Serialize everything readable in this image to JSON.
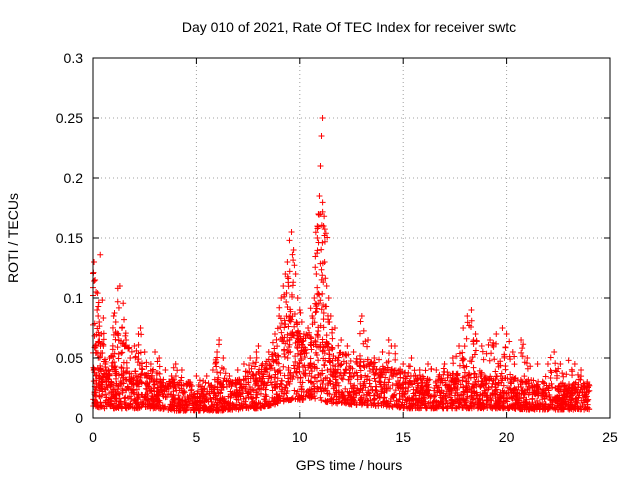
{
  "chart_data": {
    "type": "scatter",
    "title": "Day 010 of 2021, Rate Of TEC Index for receiver swtc",
    "xlabel": "GPS time / hours",
    "ylabel": "ROTI / TECUs",
    "xlim": [
      0,
      25
    ],
    "ylim": [
      0,
      0.3
    ],
    "xticks": [
      0,
      5,
      10,
      15,
      20,
      25
    ],
    "xtick_labels": [
      "0",
      "5",
      "10",
      "15",
      "20",
      "25"
    ],
    "yticks": [
      0,
      0.05,
      0.1,
      0.15,
      0.2,
      0.25,
      0.3
    ],
    "ytick_labels": [
      "0",
      "0.05",
      "0.1",
      "0.15",
      "0.2",
      "0.25",
      "0.3"
    ],
    "grid": true,
    "marker": "+",
    "color": "#ff0000",
    "series": [
      {
        "name": "ROTI",
        "points": [
          [
            0.05,
            0.13
          ],
          [
            0.1,
            0.115
          ],
          [
            0.15,
            0.105
          ],
          [
            0.2,
            0.09
          ],
          [
            0.25,
            0.085
          ],
          [
            0.3,
            0.08
          ],
          [
            0.35,
            0.136
          ],
          [
            0.4,
            0.07
          ],
          [
            0.5,
            0.06
          ],
          [
            0.6,
            0.045
          ],
          [
            0.7,
            0.035
          ],
          [
            0.8,
            0.05
          ],
          [
            1.0,
            0.085
          ],
          [
            1.1,
            0.08
          ],
          [
            1.2,
            0.108
          ],
          [
            1.3,
            0.11
          ],
          [
            1.4,
            0.075
          ],
          [
            1.5,
            0.082
          ],
          [
            1.6,
            0.065
          ],
          [
            1.8,
            0.05
          ],
          [
            2.0,
            0.06
          ],
          [
            2.2,
            0.07
          ],
          [
            2.3,
            0.075
          ],
          [
            2.5,
            0.055
          ],
          [
            2.8,
            0.045
          ],
          [
            3.0,
            0.055
          ],
          [
            3.2,
            0.05
          ],
          [
            3.5,
            0.04
          ],
          [
            3.8,
            0.035
          ],
          [
            4.0,
            0.045
          ],
          [
            4.3,
            0.04
          ],
          [
            4.6,
            0.03
          ],
          [
            5.0,
            0.035
          ],
          [
            5.5,
            0.035
          ],
          [
            5.8,
            0.04
          ],
          [
            6.0,
            0.055
          ],
          [
            6.1,
            0.065
          ],
          [
            6.3,
            0.05
          ],
          [
            6.6,
            0.035
          ],
          [
            7.0,
            0.04
          ],
          [
            7.3,
            0.045
          ],
          [
            7.6,
            0.05
          ],
          [
            7.9,
            0.055
          ],
          [
            8.0,
            0.06
          ],
          [
            8.2,
            0.045
          ],
          [
            8.5,
            0.055
          ],
          [
            8.8,
            0.07
          ],
          [
            9.0,
            0.085
          ],
          [
            9.1,
            0.1
          ],
          [
            9.2,
            0.11
          ],
          [
            9.3,
            0.12
          ],
          [
            9.4,
            0.13
          ],
          [
            9.5,
            0.148
          ],
          [
            9.6,
            0.155
          ],
          [
            9.7,
            0.14
          ],
          [
            9.8,
            0.12
          ],
          [
            9.9,
            0.1
          ],
          [
            10.0,
            0.09
          ],
          [
            10.1,
            0.08
          ],
          [
            10.2,
            0.07
          ],
          [
            10.4,
            0.075
          ],
          [
            10.6,
            0.085
          ],
          [
            10.7,
            0.1
          ],
          [
            10.8,
            0.12
          ],
          [
            10.85,
            0.15
          ],
          [
            10.9,
            0.17
          ],
          [
            10.95,
            0.185
          ],
          [
            11.0,
            0.21
          ],
          [
            11.05,
            0.235
          ],
          [
            11.1,
            0.25
          ],
          [
            11.15,
            0.16
          ],
          [
            11.2,
            0.13
          ],
          [
            11.3,
            0.11
          ],
          [
            11.4,
            0.1
          ],
          [
            11.5,
            0.085
          ],
          [
            11.7,
            0.075
          ],
          [
            12.0,
            0.065
          ],
          [
            12.3,
            0.06
          ],
          [
            12.6,
            0.055
          ],
          [
            13.0,
            0.085
          ],
          [
            13.3,
            0.065
          ],
          [
            13.6,
            0.05
          ],
          [
            14.0,
            0.055
          ],
          [
            14.3,
            0.065
          ],
          [
            14.6,
            0.06
          ],
          [
            15.0,
            0.045
          ],
          [
            15.4,
            0.05
          ],
          [
            15.8,
            0.04
          ],
          [
            16.2,
            0.045
          ],
          [
            16.6,
            0.04
          ],
          [
            17.0,
            0.045
          ],
          [
            17.4,
            0.05
          ],
          [
            17.7,
            0.06
          ],
          [
            17.9,
            0.075
          ],
          [
            18.1,
            0.085
          ],
          [
            18.3,
            0.09
          ],
          [
            18.5,
            0.07
          ],
          [
            18.8,
            0.06
          ],
          [
            19.2,
            0.065
          ],
          [
            19.5,
            0.07
          ],
          [
            19.8,
            0.075
          ],
          [
            20.0,
            0.07
          ],
          [
            20.3,
            0.055
          ],
          [
            20.7,
            0.065
          ],
          [
            21.0,
            0.05
          ],
          [
            21.5,
            0.045
          ],
          [
            22.0,
            0.045
          ],
          [
            22.3,
            0.055
          ],
          [
            22.6,
            0.045
          ],
          [
            23.0,
            0.048
          ],
          [
            23.3,
            0.045
          ],
          [
            23.6,
            0.04
          ],
          [
            23.9,
            0.03
          ]
        ],
        "baseline_profile": [
          [
            0.0,
            0.01,
            0.045
          ],
          [
            0.5,
            0.008,
            0.04
          ],
          [
            1.0,
            0.008,
            0.045
          ],
          [
            2.0,
            0.008,
            0.04
          ],
          [
            3.0,
            0.008,
            0.035
          ],
          [
            4.0,
            0.006,
            0.03
          ],
          [
            5.0,
            0.006,
            0.03
          ],
          [
            6.0,
            0.006,
            0.03
          ],
          [
            7.0,
            0.007,
            0.033
          ],
          [
            8.0,
            0.008,
            0.04
          ],
          [
            8.5,
            0.01,
            0.05
          ],
          [
            9.0,
            0.012,
            0.065
          ],
          [
            9.5,
            0.015,
            0.075
          ],
          [
            10.0,
            0.015,
            0.07
          ],
          [
            10.5,
            0.015,
            0.07
          ],
          [
            11.0,
            0.015,
            0.075
          ],
          [
            11.5,
            0.012,
            0.06
          ],
          [
            12.0,
            0.012,
            0.055
          ],
          [
            13.0,
            0.01,
            0.05
          ],
          [
            14.0,
            0.01,
            0.045
          ],
          [
            15.0,
            0.008,
            0.04
          ],
          [
            16.0,
            0.008,
            0.035
          ],
          [
            17.0,
            0.008,
            0.035
          ],
          [
            18.0,
            0.008,
            0.04
          ],
          [
            19.0,
            0.008,
            0.035
          ],
          [
            20.0,
            0.008,
            0.035
          ],
          [
            21.0,
            0.007,
            0.032
          ],
          [
            22.0,
            0.007,
            0.03
          ],
          [
            23.0,
            0.007,
            0.03
          ],
          [
            24.0,
            0.007,
            0.03
          ]
        ]
      }
    ]
  }
}
